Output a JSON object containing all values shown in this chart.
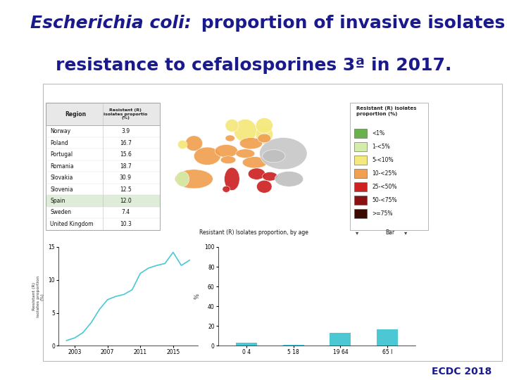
{
  "title_color": "#1a1a8c",
  "title_fontsize": 18,
  "footer_text": "ECDC 2018",
  "footer_color": "#1a1a8c",
  "footer_fontsize": 10,
  "bg_color": "#ffffff",
  "table_rows": [
    [
      "Norway",
      "3.9"
    ],
    [
      "Poland",
      "16.7"
    ],
    [
      "Portugal",
      "15.6"
    ],
    [
      "Romania",
      "18.7"
    ],
    [
      "Slovakia",
      "30.9"
    ],
    [
      "Slovenia",
      "12.5"
    ],
    [
      "Spain",
      "12.0"
    ],
    [
      "Sweden",
      "7.4"
    ],
    [
      "United Kingdom",
      "10.3"
    ]
  ],
  "highlight_row": 6,
  "legend_items": [
    {
      "label": "<1%",
      "color": "#6ab04c"
    },
    {
      "label": "1-<5%",
      "color": "#d4edaa"
    },
    {
      "label": "5-<10%",
      "color": "#f5e87c"
    },
    {
      "label": "10-<25%",
      "color": "#f0a050"
    },
    {
      "label": "25-<50%",
      "color": "#cc2222"
    },
    {
      "label": "50-<75%",
      "color": "#881111"
    },
    {
      "label": ">=75%",
      "color": "#3a0a00"
    }
  ],
  "line_years": [
    2002,
    2003,
    2004,
    2005,
    2006,
    2007,
    2008,
    2009,
    2010,
    2011,
    2012,
    2013,
    2014,
    2015,
    2016,
    2017
  ],
  "line_vals": [
    0.8,
    1.2,
    2.0,
    3.5,
    5.5,
    7.0,
    7.5,
    7.8,
    8.5,
    11.0,
    11.8,
    12.2,
    12.5,
    14.2,
    12.2,
    13.0
  ],
  "line_color": "#4bc8d4",
  "bar_cats": [
    "0 4",
    "5 18",
    "19 64",
    "65 I"
  ],
  "bar_vals": [
    3,
    1,
    13,
    17
  ],
  "bar_color": "#4bc8d4",
  "content_bg": "#f2f2f2",
  "content_border": "#bbbbbb",
  "table_bg": "#ffffff",
  "table_header_bg": "#e8e8e8",
  "map_bg": "#c8dce8",
  "legend_bg": "#f8f8f8"
}
